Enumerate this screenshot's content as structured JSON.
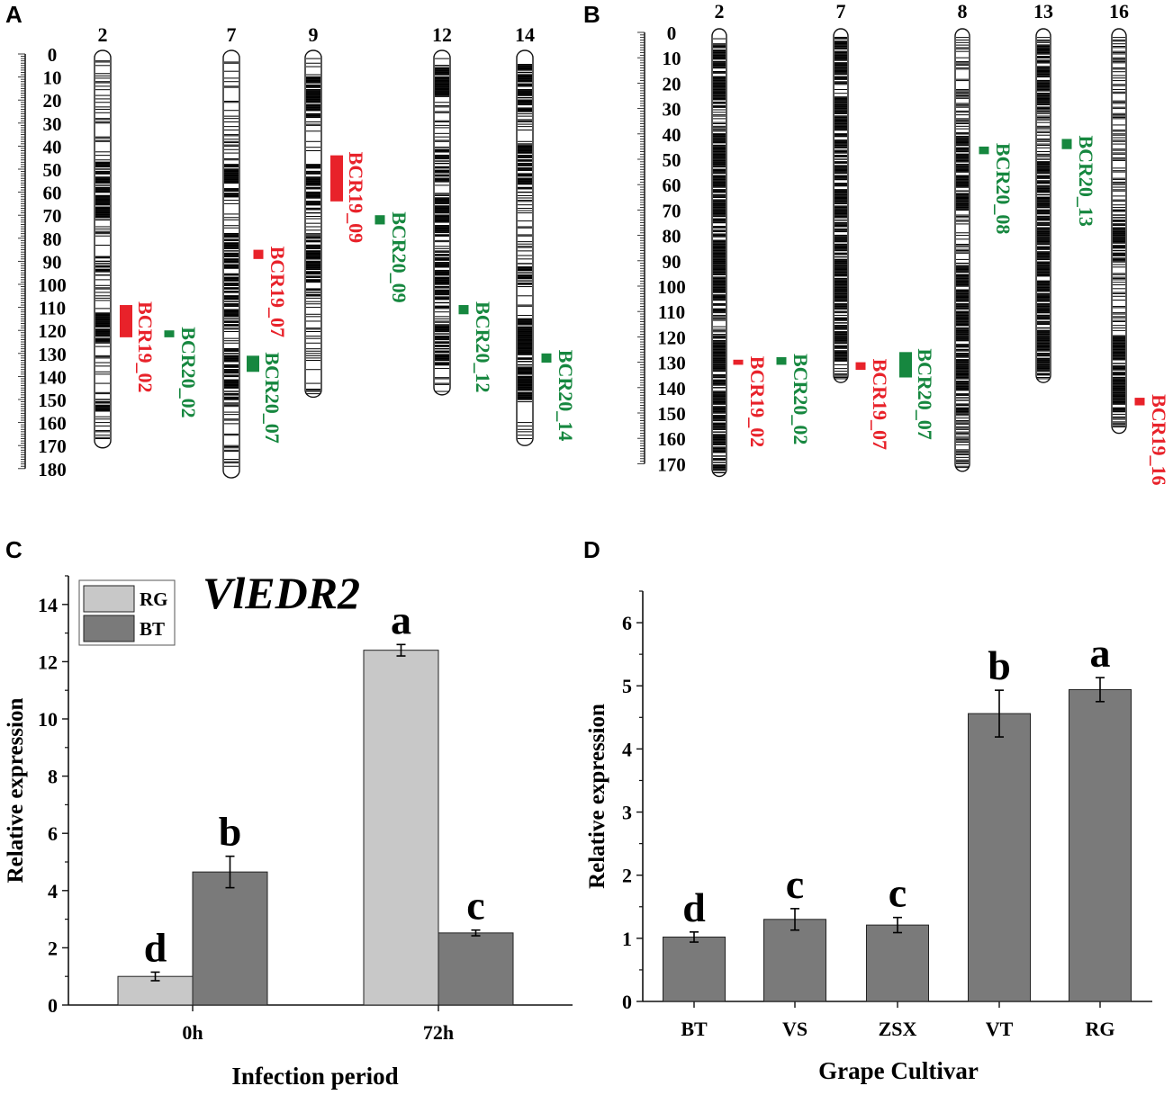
{
  "colors": {
    "qtl_red": "#e8222a",
    "qtl_green": "#16873f",
    "bar_light": "#c8c8c8",
    "bar_dark": "#7a7a7a"
  },
  "panels": {
    "a": "A",
    "b": "B",
    "c": "C",
    "d": "D"
  },
  "chart_data": [
    {
      "type": "diagram",
      "panel": "A",
      "scale_labels": [
        "0",
        "10",
        "20",
        "30",
        "40",
        "50",
        "60",
        "70",
        "80",
        "90",
        "100",
        "110",
        "120",
        "130",
        "140",
        "150",
        "160",
        "170",
        "180"
      ],
      "chromosomes": [
        {
          "label": "2",
          "length": 171,
          "dense": [
            [
              47,
              72
            ],
            [
              88,
              96
            ],
            [
              112,
              125
            ],
            [
              150,
              156
            ]
          ],
          "qtl": [
            {
              "name": "BCR19_02",
              "color": "red",
              "start": 109,
              "end": 123
            },
            {
              "name": "BCR20_02",
              "color": "green",
              "start": 120,
              "end": 123
            }
          ]
        },
        {
          "label": "7",
          "length": 184,
          "dense": [
            [
              48,
              62
            ],
            [
              78,
              118
            ],
            [
              128,
              150
            ]
          ],
          "qtl": [
            {
              "name": "BCR19_07",
              "color": "red",
              "start": 85,
              "end": 89
            },
            {
              "name": "BCR20_07",
              "color": "green",
              "start": 131,
              "end": 138
            }
          ]
        },
        {
          "label": "9",
          "length": 149,
          "dense": [
            [
              10,
              28
            ],
            [
              48,
              70
            ],
            [
              80,
              105
            ]
          ],
          "qtl": [
            {
              "name": "BCR19_09",
              "color": "red",
              "start": 44,
              "end": 64
            },
            {
              "name": "BCR20_09",
              "color": "green",
              "start": 70,
              "end": 74
            }
          ]
        },
        {
          "label": "12",
          "length": 148,
          "dense": [
            [
              5,
              18
            ],
            [
              40,
              55
            ],
            [
              62,
              80
            ],
            [
              86,
              110
            ],
            [
              118,
              135
            ]
          ],
          "qtl": [
            {
              "name": "BCR20_12",
              "color": "green",
              "start": 109,
              "end": 113
            }
          ]
        },
        {
          "label": "14",
          "length": 170,
          "dense": [
            [
              5,
              25
            ],
            [
              40,
              60
            ],
            [
              90,
              100
            ],
            [
              115,
              150
            ]
          ],
          "qtl": [
            {
              "name": "BCR20_14",
              "color": "green",
              "start": 130,
              "end": 134
            }
          ]
        }
      ]
    },
    {
      "type": "diagram",
      "panel": "B",
      "scale_labels": [
        "0",
        "10",
        "20",
        "30",
        "40",
        "50",
        "60",
        "70",
        "80",
        "90",
        "100",
        "110",
        "120",
        "130",
        "140",
        "150",
        "160",
        "170"
      ],
      "chromosomes": [
        {
          "label": "2",
          "length": 175,
          "dense": [
            [
              5,
              30
            ],
            [
              40,
              110
            ],
            [
              120,
              175
            ]
          ],
          "qtl": [
            {
              "name": "BCR19_02",
              "color": "red",
              "start": 129,
              "end": 131
            },
            {
              "name": "BCR20_02",
              "color": "green",
              "start": 128,
              "end": 131
            }
          ]
        },
        {
          "label": "7",
          "length": 138,
          "dense": [
            [
              0,
              20
            ],
            [
              25,
              110
            ],
            [
              112,
              130
            ]
          ],
          "qtl": [
            {
              "name": "BCR19_07",
              "color": "red",
              "start": 130,
              "end": 133
            },
            {
              "name": "BCR20_07",
              "color": "green",
              "start": 126,
              "end": 136
            }
          ]
        },
        {
          "label": "8",
          "length": 173,
          "dense": [
            [
              40,
              70
            ],
            [
              90,
              150
            ]
          ],
          "qtl": [
            {
              "name": "BCR20_08",
              "color": "green",
              "start": 45,
              "end": 48
            }
          ]
        },
        {
          "label": "13",
          "length": 138,
          "dense": [
            [
              5,
              30
            ],
            [
              50,
              135
            ]
          ],
          "qtl": [
            {
              "name": "BCR20_13",
              "color": "green",
              "start": 42,
              "end": 46
            }
          ]
        },
        {
          "label": "16",
          "length": 158,
          "dense": [
            [
              70,
              90
            ],
            [
              120,
              150
            ]
          ],
          "qtl": [
            {
              "name": "BCR19_16",
              "color": "red",
              "start": 144,
              "end": 147
            }
          ]
        }
      ]
    },
    {
      "type": "bar",
      "panel": "C",
      "title": "VlEDR2",
      "xlabel": "Infection period",
      "ylabel": "Relative expression",
      "ylim": [
        0,
        15
      ],
      "yticks": [
        "0",
        "2",
        "4",
        "6",
        "8",
        "10",
        "12",
        "14"
      ],
      "categories": [
        "0h",
        "72h"
      ],
      "series": [
        {
          "name": "RG",
          "values": [
            1.0,
            12.4
          ],
          "errors": [
            0.15,
            0.2
          ],
          "letters": [
            "d",
            "a"
          ]
        },
        {
          "name": "BT",
          "values": [
            4.65,
            2.52
          ],
          "errors": [
            0.55,
            0.1
          ],
          "letters": [
            "b",
            "c"
          ]
        }
      ],
      "legend": {
        "position": "top-left",
        "entries": [
          "RG",
          "BT"
        ]
      }
    },
    {
      "type": "bar",
      "panel": "D",
      "xlabel": "Grape Cultivar",
      "ylabel": "Relative expression",
      "ylim": [
        0,
        6.5
      ],
      "yticks": [
        "0",
        "1",
        "2",
        "3",
        "4",
        "5",
        "6"
      ],
      "categories": [
        "BT",
        "VS",
        "ZSX",
        "VT",
        "RG"
      ],
      "values": [
        1.02,
        1.3,
        1.21,
        4.56,
        4.94
      ],
      "errors": [
        0.08,
        0.17,
        0.12,
        0.37,
        0.19
      ],
      "letters": [
        "d",
        "c",
        "c",
        "b",
        "a"
      ]
    }
  ]
}
